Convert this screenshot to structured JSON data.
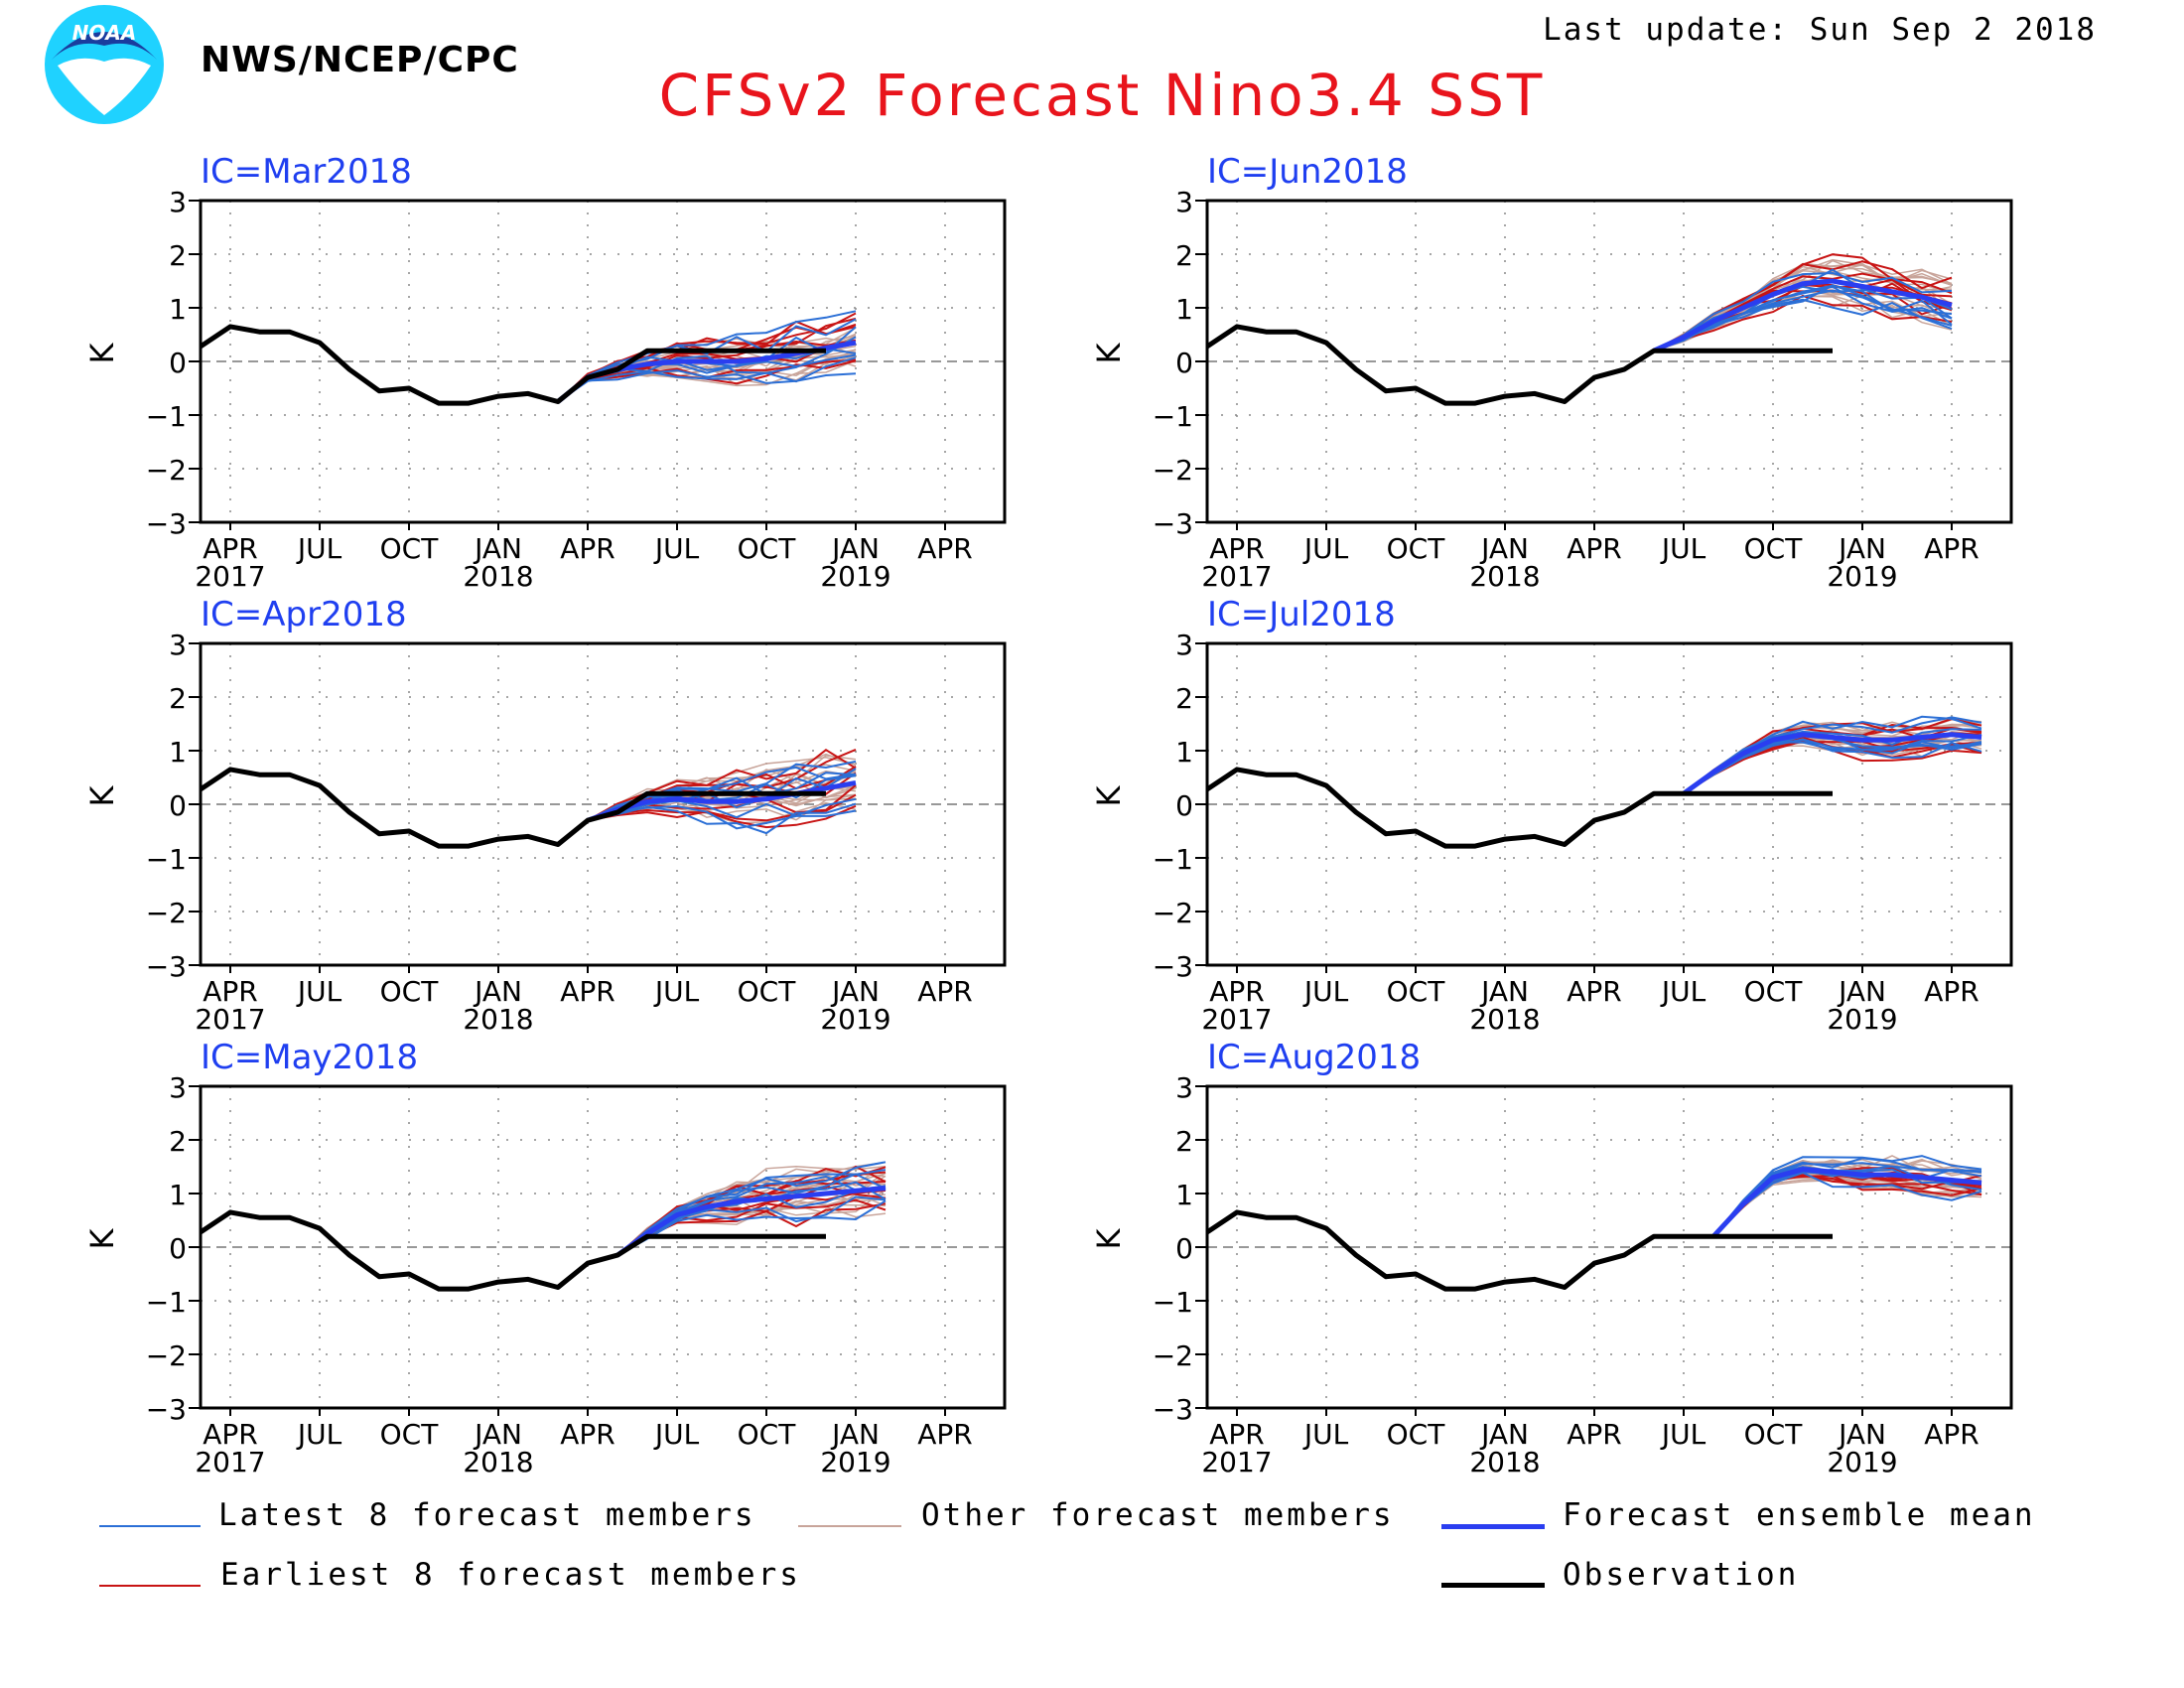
{
  "header": {
    "agency": "NWS/NCEP/CPC",
    "logo_text": "NOAA",
    "title": "CFSv2 Forecast Nino3.4 SST",
    "last_update": "Last update: Sun Sep 2 2018"
  },
  "colors": {
    "title": "#e8141c",
    "panel_title": "#1f3ff0",
    "latest": "#2b6fd6",
    "earliest": "#c81414",
    "other": "#c8a49a",
    "mean": "#2a3ef0",
    "observation": "#000000"
  },
  "legend": {
    "latest": "Latest 8 forecast members",
    "other": "Other forecast members",
    "mean": "Forecast ensemble mean",
    "earliest": "Earliest 8 forecast members",
    "observation": "Observation"
  },
  "chart_data": [
    {
      "type": "line",
      "title": "IC=Mar2018",
      "ylabel": "K",
      "ylim": [
        -3,
        3
      ],
      "yticks": [
        "3",
        "2",
        "1",
        "0",
        "−1",
        "−2",
        "−3"
      ],
      "x_ticks": [
        {
          "label": "APR",
          "year": "2017"
        },
        {
          "label": "JUL",
          "year": ""
        },
        {
          "label": "OCT",
          "year": ""
        },
        {
          "label": "JAN",
          "year": "2018"
        },
        {
          "label": "APR",
          "year": ""
        },
        {
          "label": "JUL",
          "year": ""
        },
        {
          "label": "OCT",
          "year": ""
        },
        {
          "label": "JAN",
          "year": "2019"
        },
        {
          "label": "APR",
          "year": ""
        }
      ],
      "x_months_since_mar2017": [
        0,
        27
      ],
      "observation": {
        "x": [
          0,
          1,
          2,
          3,
          4,
          5,
          6,
          7,
          8,
          9,
          10,
          11,
          12,
          13,
          14,
          15,
          16,
          17,
          18,
          19,
          20,
          21
        ],
        "values": [
          0.28,
          0.65,
          0.55,
          0.55,
          0.35,
          -0.15,
          -0.55,
          -0.5,
          -0.78,
          -0.78,
          -0.65,
          -0.6,
          -0.75,
          -0.3,
          -0.15,
          0.2,
          0.2,
          0.2,
          0.2,
          0.2,
          0.2,
          0.2
        ]
      },
      "forecast_start": {
        "x": 12,
        "value": -0.75
      },
      "forecast_length": 10,
      "ensemble_mean": {
        "x": [
          12,
          13,
          14,
          15,
          16,
          17,
          18,
          19,
          20,
          21,
          22
        ],
        "values": [
          -0.75,
          -0.3,
          -0.15,
          -0.05,
          0,
          0,
          0,
          0.05,
          0.15,
          0.25,
          0.35
        ]
      },
      "spread": 0.45
    },
    {
      "type": "line",
      "title": "IC=Jun2018",
      "ylabel": "K",
      "ylim": [
        -3,
        3
      ],
      "yticks": [
        "3",
        "2",
        "1",
        "0",
        "−1",
        "−2",
        "−3"
      ],
      "x_ticks": [
        {
          "label": "APR",
          "year": "2017"
        },
        {
          "label": "JUL",
          "year": ""
        },
        {
          "label": "OCT",
          "year": ""
        },
        {
          "label": "JAN",
          "year": "2018"
        },
        {
          "label": "APR",
          "year": ""
        },
        {
          "label": "JUL",
          "year": ""
        },
        {
          "label": "OCT",
          "year": ""
        },
        {
          "label": "JAN",
          "year": "2019"
        },
        {
          "label": "APR",
          "year": ""
        }
      ],
      "x_months_since_mar2017": [
        0,
        27
      ],
      "observation": {
        "x": [
          0,
          1,
          2,
          3,
          4,
          5,
          6,
          7,
          8,
          9,
          10,
          11,
          12,
          13,
          14,
          15,
          16,
          17,
          18,
          19,
          20,
          21
        ],
        "values": [
          0.28,
          0.65,
          0.55,
          0.55,
          0.35,
          -0.15,
          -0.55,
          -0.5,
          -0.78,
          -0.78,
          -0.65,
          -0.6,
          -0.75,
          -0.3,
          -0.15,
          0.2,
          0.2,
          0.2,
          0.2,
          0.2,
          0.2,
          0.2
        ]
      },
      "forecast_start": {
        "x": 15,
        "value": 0.2
      },
      "ensemble_mean": {
        "x": [
          15,
          16,
          17,
          18,
          19,
          20,
          21,
          22,
          23,
          24,
          25
        ],
        "values": [
          0.2,
          0.45,
          0.75,
          1.0,
          1.25,
          1.45,
          1.5,
          1.4,
          1.3,
          1.2,
          1.05
        ]
      },
      "spread": 0.4
    },
    {
      "type": "line",
      "title": "IC=Apr2018",
      "ylabel": "K",
      "ylim": [
        -3,
        3
      ],
      "yticks": [
        "3",
        "2",
        "1",
        "0",
        "−1",
        "−2",
        "−3"
      ],
      "x_ticks": [
        {
          "label": "APR",
          "year": "2017"
        },
        {
          "label": "JUL",
          "year": ""
        },
        {
          "label": "OCT",
          "year": ""
        },
        {
          "label": "JAN",
          "year": "2018"
        },
        {
          "label": "APR",
          "year": ""
        },
        {
          "label": "JUL",
          "year": ""
        },
        {
          "label": "OCT",
          "year": ""
        },
        {
          "label": "JAN",
          "year": "2019"
        },
        {
          "label": "APR",
          "year": ""
        }
      ],
      "x_months_since_mar2017": [
        0,
        27
      ],
      "observation": {
        "x": [
          0,
          1,
          2,
          3,
          4,
          5,
          6,
          7,
          8,
          9,
          10,
          11,
          12,
          13,
          14,
          15,
          16,
          17,
          18,
          19,
          20,
          21
        ],
        "values": [
          0.28,
          0.65,
          0.55,
          0.55,
          0.35,
          -0.15,
          -0.55,
          -0.5,
          -0.78,
          -0.78,
          -0.65,
          -0.6,
          -0.75,
          -0.3,
          -0.15,
          0.2,
          0.2,
          0.2,
          0.2,
          0.2,
          0.2,
          0.2
        ]
      },
      "forecast_start": {
        "x": 13,
        "value": -0.3
      },
      "ensemble_mean": {
        "x": [
          13,
          14,
          15,
          16,
          17,
          18,
          19,
          20,
          21,
          22
        ],
        "values": [
          -0.3,
          -0.1,
          0.05,
          0.1,
          0.05,
          0.05,
          0.1,
          0.2,
          0.3,
          0.4
        ]
      },
      "spread": 0.5
    },
    {
      "type": "line",
      "title": "IC=Jul2018",
      "ylabel": "K",
      "ylim": [
        -3,
        3
      ],
      "yticks": [
        "3",
        "2",
        "1",
        "0",
        "−1",
        "−2",
        "−3"
      ],
      "x_ticks": [
        {
          "label": "APR",
          "year": "2017"
        },
        {
          "label": "JUL",
          "year": ""
        },
        {
          "label": "OCT",
          "year": ""
        },
        {
          "label": "JAN",
          "year": "2018"
        },
        {
          "label": "APR",
          "year": ""
        },
        {
          "label": "JUL",
          "year": ""
        },
        {
          "label": "OCT",
          "year": ""
        },
        {
          "label": "JAN",
          "year": "2019"
        },
        {
          "label": "APR",
          "year": ""
        }
      ],
      "x_months_since_mar2017": [
        0,
        27
      ],
      "observation": {
        "x": [
          0,
          1,
          2,
          3,
          4,
          5,
          6,
          7,
          8,
          9,
          10,
          11,
          12,
          13,
          14,
          15,
          16,
          17,
          18,
          19,
          20,
          21
        ],
        "values": [
          0.28,
          0.65,
          0.55,
          0.55,
          0.35,
          -0.15,
          -0.55,
          -0.5,
          -0.78,
          -0.78,
          -0.65,
          -0.6,
          -0.75,
          -0.3,
          -0.15,
          0.2,
          0.2,
          0.2,
          0.2,
          0.2,
          0.2,
          0.2
        ]
      },
      "forecast_start": {
        "x": 16,
        "value": 0.2
      },
      "ensemble_mean": {
        "x": [
          16,
          17,
          18,
          19,
          20,
          21,
          22,
          23,
          24,
          25,
          26
        ],
        "values": [
          0.2,
          0.6,
          0.95,
          1.2,
          1.3,
          1.25,
          1.2,
          1.2,
          1.25,
          1.3,
          1.25
        ]
      },
      "spread": 0.3
    },
    {
      "type": "line",
      "title": "IC=May2018",
      "ylabel": "K",
      "ylim": [
        -3,
        3
      ],
      "yticks": [
        "3",
        "2",
        "1",
        "0",
        "−1",
        "−2",
        "−3"
      ],
      "x_ticks": [
        {
          "label": "APR",
          "year": "2017"
        },
        {
          "label": "JUL",
          "year": ""
        },
        {
          "label": "OCT",
          "year": ""
        },
        {
          "label": "JAN",
          "year": "2018"
        },
        {
          "label": "APR",
          "year": ""
        },
        {
          "label": "JUL",
          "year": ""
        },
        {
          "label": "OCT",
          "year": ""
        },
        {
          "label": "JAN",
          "year": "2019"
        },
        {
          "label": "APR",
          "year": ""
        }
      ],
      "x_months_since_mar2017": [
        0,
        27
      ],
      "observation": {
        "x": [
          0,
          1,
          2,
          3,
          4,
          5,
          6,
          7,
          8,
          9,
          10,
          11,
          12,
          13,
          14,
          15,
          16,
          17,
          18,
          19,
          20,
          21
        ],
        "values": [
          0.28,
          0.65,
          0.55,
          0.55,
          0.35,
          -0.15,
          -0.55,
          -0.5,
          -0.78,
          -0.78,
          -0.65,
          -0.6,
          -0.75,
          -0.3,
          -0.15,
          0.2,
          0.2,
          0.2,
          0.2,
          0.2,
          0.2,
          0.2
        ]
      },
      "forecast_start": {
        "x": 14,
        "value": -0.15
      },
      "ensemble_mean": {
        "x": [
          14,
          15,
          16,
          17,
          18,
          19,
          20,
          21,
          22,
          23
        ],
        "values": [
          -0.15,
          0.25,
          0.6,
          0.75,
          0.85,
          0.9,
          0.95,
          1.0,
          1.05,
          1.1
        ]
      },
      "spread": 0.45
    },
    {
      "type": "line",
      "title": "IC=Aug2018",
      "ylabel": "K",
      "ylim": [
        -3,
        3
      ],
      "yticks": [
        "3",
        "2",
        "1",
        "0",
        "−1",
        "−2",
        "−3"
      ],
      "x_ticks": [
        {
          "label": "APR",
          "year": "2017"
        },
        {
          "label": "JUL",
          "year": ""
        },
        {
          "label": "OCT",
          "year": ""
        },
        {
          "label": "JAN",
          "year": "2018"
        },
        {
          "label": "APR",
          "year": ""
        },
        {
          "label": "JUL",
          "year": ""
        },
        {
          "label": "OCT",
          "year": ""
        },
        {
          "label": "JAN",
          "year": "2019"
        },
        {
          "label": "APR",
          "year": ""
        }
      ],
      "x_months_since_mar2017": [
        0,
        27
      ],
      "observation": {
        "x": [
          0,
          1,
          2,
          3,
          4,
          5,
          6,
          7,
          8,
          9,
          10,
          11,
          12,
          13,
          14,
          15,
          16,
          17,
          18,
          19,
          20,
          21
        ],
        "values": [
          0.28,
          0.65,
          0.55,
          0.55,
          0.35,
          -0.15,
          -0.55,
          -0.5,
          -0.78,
          -0.78,
          -0.65,
          -0.6,
          -0.75,
          -0.3,
          -0.15,
          0.2,
          0.2,
          0.2,
          0.2,
          0.2,
          0.2,
          0.2
        ]
      },
      "forecast_start": {
        "x": 17,
        "value": 0.2
      },
      "ensemble_mean": {
        "x": [
          17,
          18,
          19,
          20,
          21,
          22,
          23,
          24,
          25,
          26
        ],
        "values": [
          0.2,
          0.8,
          1.3,
          1.45,
          1.4,
          1.35,
          1.35,
          1.3,
          1.25,
          1.2
        ]
      },
      "spread": 0.3
    }
  ]
}
